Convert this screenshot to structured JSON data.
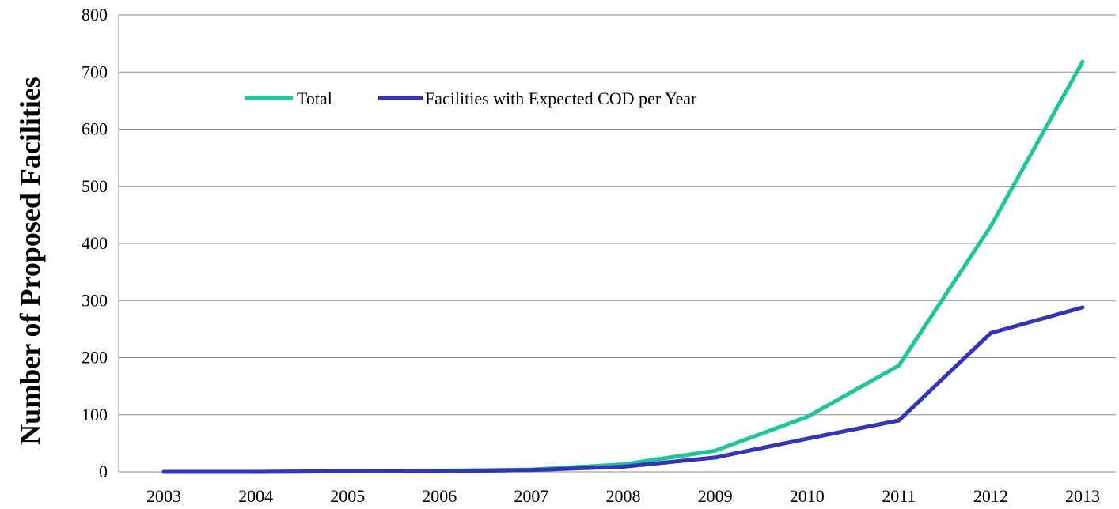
{
  "chart_data": {
    "type": "line",
    "title": "",
    "xlabel": "",
    "ylabel": "Number of Proposed Facilities",
    "x": [
      "2003",
      "2004",
      "2005",
      "2006",
      "2007",
      "2008",
      "2009",
      "2010",
      "2011",
      "2012",
      "2013"
    ],
    "ylim": [
      0,
      800
    ],
    "yticks": [
      0,
      100,
      200,
      300,
      400,
      500,
      600,
      700,
      800
    ],
    "grid": "horizontal",
    "legend_position": "top-left",
    "series": [
      {
        "name": "Total",
        "color": "#1BC79A",
        "values": [
          0,
          0,
          1,
          2,
          4,
          13,
          37,
          96,
          186,
          430,
          718
        ]
      },
      {
        "name": "Facilities with Expected COD per Year",
        "color": "#3333BB",
        "values": [
          0,
          0,
          1,
          1,
          3,
          9,
          25,
          58,
          90,
          243,
          288
        ]
      }
    ]
  }
}
